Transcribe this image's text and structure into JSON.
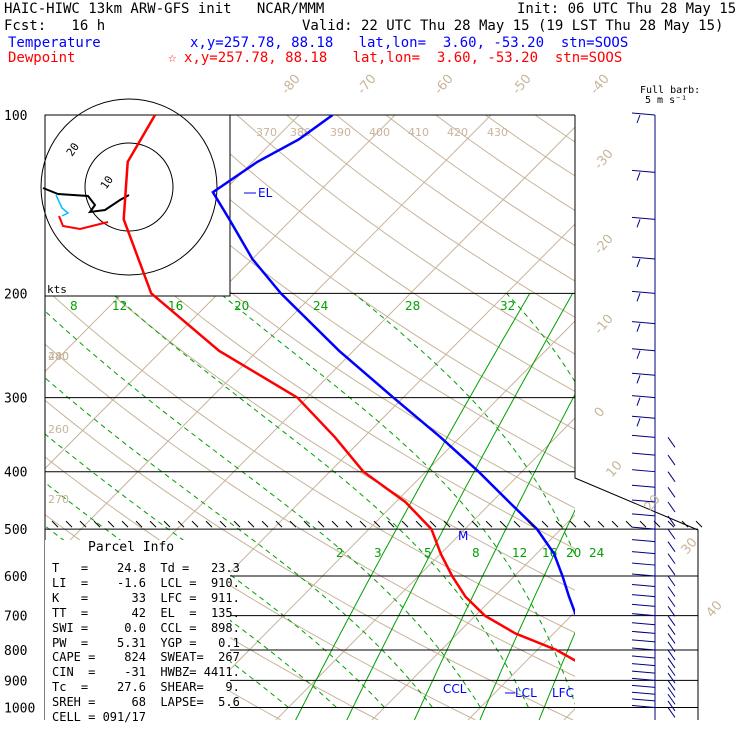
{
  "header": {
    "title_left": "HAIC-HIWC 13km ARW-GFS init   NCAR/MMM",
    "init": "Init: 06 UTC Thu 28 May 15",
    "fcst": "Fcst:   16 h",
    "valid": "Valid: 22 UTC Thu 28 May 15 (19 LST Thu 28 May 15)",
    "temp_label": "Temperature",
    "temp_info": "x,y=257.78, 88.18   lat,lon=  3.60, -53.20  stn=SOOS",
    "dew_label": "Dewpoint",
    "dew_marker": "☆",
    "dew_info": "x,y=257.78, 88.18   lat,lon=  3.60, -53.20  stn=SOOS"
  },
  "barb_legend": {
    "line1": "Full barb:",
    "line2": "5 m s⁻¹"
  },
  "parcel_info": {
    "title": "Parcel Info",
    "rows": [
      "T   =    24.8  Td =   23.3",
      "LI  =    -1.6  LCL =  910.",
      "K   =      33  LFC =  911.",
      "TT  =      42  EL  =  135.",
      "SWI =     0.0  CCL =  898.",
      "PW  =    5.31  YGP =   0.1",
      "CAPE =    824  SWEAT=  267",
      "CIN  =    -31  HWBZ= 4411.",
      "Tc  =    27.6  SHEAR=   9.",
      "SREH =     68  LAPSE=  5.6",
      "CELL = 091/17"
    ]
  },
  "chart_data": {
    "type": "line",
    "subtype": "skew-t log-p",
    "pressure_levels": [
      100,
      200,
      300,
      400,
      500,
      600,
      700,
      800,
      900,
      1000
    ],
    "skewed_isotherms": [
      -80,
      -70,
      -60,
      -50,
      -40,
      -30,
      -20,
      -10,
      0,
      10,
      20,
      30,
      40
    ],
    "dry_adiabat_labels": [
      370,
      380,
      390,
      400,
      410,
      420,
      430,
      440,
      280,
      270,
      260
    ],
    "mixing_ratio_labels_upper": [
      8,
      12,
      16,
      20,
      24,
      28,
      32
    ],
    "mixing_ratio_labels_lower": [
      2,
      3,
      5,
      8,
      12,
      16,
      20,
      24
    ],
    "series": [
      {
        "name": "Temperature",
        "color": "#0000ff",
        "points": [
          [
            1000,
            24.8
          ],
          [
            950,
            22.0
          ],
          [
            900,
            20.5
          ],
          [
            850,
            18.5
          ],
          [
            800,
            15.5
          ],
          [
            750,
            13.2
          ],
          [
            700,
            10.5
          ],
          [
            650,
            7.8
          ],
          [
            600,
            5.0
          ],
          [
            550,
            1.8
          ],
          [
            500,
            -2.5
          ],
          [
            450,
            -8.2
          ],
          [
            400,
            -14.5
          ],
          [
            350,
            -22.0
          ],
          [
            300,
            -31.0
          ],
          [
            250,
            -41.5
          ],
          [
            200,
            -53.5
          ],
          [
            175,
            -60.0
          ],
          [
            150,
            -66.5
          ],
          [
            135,
            -71.0
          ],
          [
            120,
            -69.5
          ],
          [
            110,
            -67.5
          ],
          [
            100,
            -66.5
          ]
        ]
      },
      {
        "name": "Dewpoint",
        "color": "#ff0000",
        "points": [
          [
            1000,
            23.3
          ],
          [
            950,
            21.5
          ],
          [
            900,
            20.0
          ],
          [
            850,
            16.5
          ],
          [
            800,
            12.0
          ],
          [
            750,
            6.0
          ],
          [
            700,
            1.0
          ],
          [
            650,
            -3.0
          ],
          [
            600,
            -6.5
          ],
          [
            550,
            -10.0
          ],
          [
            500,
            -13.5
          ],
          [
            450,
            -19.0
          ],
          [
            400,
            -26.5
          ],
          [
            350,
            -33.0
          ],
          [
            300,
            -41.0
          ],
          [
            250,
            -54.0
          ],
          [
            200,
            -67.0
          ],
          [
            150,
            -77.5
          ],
          [
            120,
            -83.0
          ],
          [
            100,
            -85.0
          ]
        ]
      }
    ],
    "annotations": [
      "EL",
      "CCL",
      "LCL",
      "LFC",
      "M"
    ],
    "hodograph_labels": {
      "rings": [
        "10",
        "20"
      ],
      "units": "kts"
    }
  },
  "colors": {
    "temperature": "#0000ff",
    "dewpoint": "#ff0000",
    "mixing_ratio": "#00a000",
    "adiabat": "#c8b49a",
    "isobar": "#000000",
    "barb": "#000080",
    "hodo_cyan": "#00c0ff"
  }
}
